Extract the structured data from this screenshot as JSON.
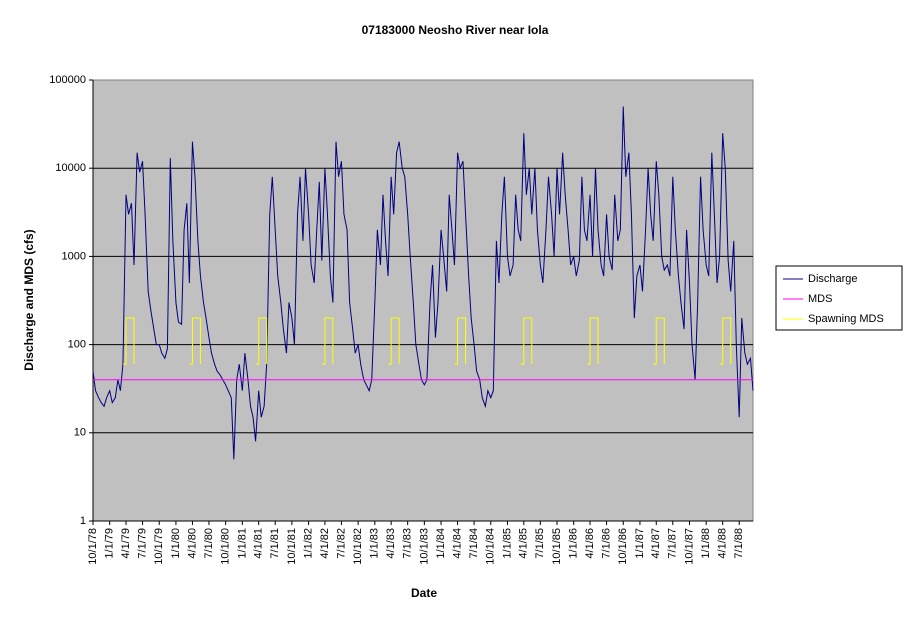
{
  "chart_data": {
    "type": "line",
    "title": "07183000 Neosho River near Iola",
    "x_label": "Date",
    "y_label": "Discharge and MDS (cfs)",
    "log_y": true,
    "grid": true,
    "legend": "right",
    "ylim": [
      1,
      100000
    ],
    "yticks": [
      1,
      10,
      100,
      1000,
      10000,
      100000
    ],
    "xlim": [
      "10/1/78",
      "9/15/88"
    ],
    "xticks": [
      "10/1/78",
      "1/1/79",
      "4/1/79",
      "7/1/79",
      "10/1/79",
      "1/1/80",
      "4/1/80",
      "7/1/80",
      "10/1/80",
      "1/1/81",
      "4/1/81",
      "7/1/81",
      "10/1/81",
      "1/1/82",
      "4/1/82",
      "7/1/82",
      "10/1/82",
      "1/1/83",
      "4/1/83",
      "7/1/83",
      "10/1/83",
      "1/1/84",
      "4/1/84",
      "7/1/84",
      "10/1/84",
      "1/1/85",
      "4/1/85",
      "7/1/85",
      "10/1/85",
      "1/1/86",
      "4/1/86",
      "7/1/86",
      "10/1/86",
      "1/1/87",
      "4/1/87",
      "7/1/87",
      "10/1/87",
      "1/1/88",
      "4/1/88",
      "7/1/88"
    ],
    "x": [
      "10/1/78",
      "10/15/78",
      "11/1/78",
      "11/15/78",
      "12/1/78",
      "12/15/78",
      "1/1/79",
      "1/15/79",
      "2/1/79",
      "2/15/79",
      "3/1/79",
      "3/15/79",
      "4/1/79",
      "4/15/79",
      "5/1/79",
      "5/15/79",
      "6/1/79",
      "6/15/79",
      "7/1/79",
      "7/15/79",
      "8/1/79",
      "8/15/79",
      "9/1/79",
      "9/15/79",
      "10/1/79",
      "10/15/79",
      "11/1/79",
      "11/15/79",
      "12/1/79",
      "12/15/79",
      "1/1/80",
      "1/15/80",
      "2/1/80",
      "2/15/80",
      "3/1/80",
      "3/15/80",
      "4/1/80",
      "4/15/80",
      "5/1/80",
      "5/15/80",
      "6/1/80",
      "6/15/80",
      "7/1/80",
      "7/15/80",
      "8/1/80",
      "8/15/80",
      "9/1/80",
      "9/15/80",
      "10/1/80",
      "10/15/80",
      "11/1/80",
      "11/15/80",
      "12/1/80",
      "12/15/80",
      "1/1/81",
      "1/15/81",
      "2/1/81",
      "2/15/81",
      "3/1/81",
      "3/15/81",
      "4/1/81",
      "4/15/81",
      "5/1/81",
      "5/15/81",
      "6/1/81",
      "6/15/81",
      "7/1/81",
      "7/15/81",
      "8/1/81",
      "8/15/81",
      "9/1/81",
      "9/15/81",
      "10/1/81",
      "10/15/81",
      "11/1/81",
      "11/15/81",
      "12/1/81",
      "12/15/81",
      "1/1/82",
      "1/15/82",
      "2/1/82",
      "2/15/82",
      "3/1/82",
      "3/15/82",
      "4/1/82",
      "4/15/82",
      "5/1/82",
      "5/15/82",
      "6/1/82",
      "6/15/82",
      "7/1/82",
      "7/15/82",
      "8/1/82",
      "8/15/82",
      "9/1/82",
      "9/15/82",
      "10/1/82",
      "10/15/82",
      "11/1/82",
      "11/15/82",
      "12/1/82",
      "12/15/82",
      "1/1/83",
      "1/15/83",
      "2/1/83",
      "2/15/83",
      "3/1/83",
      "3/15/83",
      "4/1/83",
      "4/15/83",
      "5/1/83",
      "5/15/83",
      "6/1/83",
      "6/15/83",
      "7/1/83",
      "7/15/83",
      "8/1/83",
      "8/15/83",
      "9/1/83",
      "9/15/83",
      "10/1/83",
      "10/15/83",
      "11/1/83",
      "11/15/83",
      "12/1/83",
      "12/15/83",
      "1/1/84",
      "1/15/84",
      "2/1/84",
      "2/15/84",
      "3/1/84",
      "3/15/84",
      "4/1/84",
      "4/15/84",
      "5/1/84",
      "5/15/84",
      "6/1/84",
      "6/15/84",
      "7/1/84",
      "7/15/84",
      "8/1/84",
      "8/15/84",
      "9/1/84",
      "9/15/84",
      "10/1/84",
      "10/15/84",
      "11/1/84",
      "11/15/84",
      "12/1/84",
      "12/15/84",
      "1/1/85",
      "1/15/85",
      "2/1/85",
      "2/15/85",
      "3/1/85",
      "3/15/85",
      "4/1/85",
      "4/15/85",
      "5/1/85",
      "5/15/85",
      "6/1/85",
      "6/15/85",
      "7/1/85",
      "7/15/85",
      "8/1/85",
      "8/15/85",
      "9/1/85",
      "9/15/85",
      "10/1/85",
      "10/15/85",
      "11/1/85",
      "11/15/85",
      "12/1/85",
      "12/15/85",
      "1/1/86",
      "1/15/86",
      "2/1/86",
      "2/15/86",
      "3/1/86",
      "3/15/86",
      "4/1/86",
      "4/15/86",
      "5/1/86",
      "5/15/86",
      "6/1/86",
      "6/15/86",
      "7/1/86",
      "7/15/86",
      "8/1/86",
      "8/15/86",
      "9/1/86",
      "9/15/86",
      "10/1/86",
      "10/15/86",
      "11/1/86",
      "11/15/86",
      "12/1/86",
      "12/15/86",
      "1/1/87",
      "1/15/87",
      "2/1/87",
      "2/15/87",
      "3/1/87",
      "3/15/87",
      "4/1/87",
      "4/15/87",
      "5/1/87",
      "5/15/87",
      "6/1/87",
      "6/15/87",
      "7/1/87",
      "7/15/87",
      "8/1/87",
      "8/15/87",
      "9/1/87",
      "9/15/87",
      "10/1/87",
      "10/15/87",
      "11/1/87",
      "11/15/87",
      "12/1/87",
      "12/15/87",
      "1/1/88",
      "1/15/88",
      "2/1/88",
      "2/15/88",
      "3/1/88",
      "3/15/88",
      "4/1/88",
      "4/15/88",
      "5/1/88",
      "5/15/88",
      "6/1/88",
      "6/15/88",
      "7/1/88",
      "7/15/88",
      "8/1/88",
      "8/15/88",
      "9/1/88",
      "9/15/88"
    ],
    "series": [
      {
        "name": "Discharge",
        "color": "#000080",
        "values": [
          50,
          30,
          25,
          22,
          20,
          25,
          30,
          22,
          25,
          40,
          30,
          60,
          5000,
          3000,
          4000,
          800,
          15000,
          9000,
          12000,
          3000,
          400,
          250,
          150,
          100,
          100,
          80,
          70,
          90,
          13000,
          1500,
          300,
          180,
          170,
          2000,
          4000,
          500,
          20000,
          8000,
          1500,
          600,
          300,
          200,
          120,
          80,
          60,
          50,
          45,
          40,
          35,
          30,
          25,
          5,
          40,
          60,
          30,
          80,
          40,
          20,
          15,
          8,
          30,
          15,
          20,
          60,
          3000,
          8000,
          2000,
          600,
          300,
          150,
          80,
          300,
          200,
          100,
          3000,
          8000,
          1500,
          10000,
          3000,
          800,
          500,
          2000,
          7000,
          900,
          10000,
          3000,
          600,
          300,
          20000,
          8000,
          12000,
          3000,
          2000,
          300,
          150,
          80,
          100,
          60,
          40,
          35,
          30,
          40,
          300,
          2000,
          800,
          5000,
          1500,
          600,
          8000,
          3000,
          15000,
          20000,
          10000,
          8000,
          3000,
          1000,
          300,
          100,
          60,
          40,
          35,
          40,
          300,
          800,
          120,
          300,
          2000,
          1000,
          400,
          5000,
          2000,
          800,
          15000,
          10000,
          12000,
          3000,
          600,
          200,
          100,
          50,
          40,
          25,
          20,
          30,
          25,
          30,
          1500,
          500,
          3000,
          8000,
          1000,
          600,
          800,
          5000,
          2000,
          1500,
          25000,
          5000,
          10000,
          3000,
          10000,
          2000,
          800,
          500,
          2000,
          8000,
          3000,
          1000,
          10000,
          3000,
          15000,
          5000,
          2000,
          800,
          1000,
          600,
          900,
          8000,
          2000,
          1500,
          5000,
          1000,
          10000,
          2000,
          800,
          600,
          3000,
          1000,
          700,
          5000,
          1500,
          2000,
          50000,
          8000,
          15000,
          3000,
          200,
          600,
          800,
          400,
          2000,
          10000,
          3000,
          1500,
          12000,
          5000,
          1000,
          700,
          800,
          600,
          8000,
          2000,
          600,
          300,
          150,
          2000,
          500,
          100,
          40,
          300,
          8000,
          2000,
          800,
          600,
          15000,
          3000,
          500,
          1000,
          25000,
          10000,
          900,
          400,
          1500,
          100,
          15,
          200,
          80,
          60,
          70,
          30
        ]
      },
      {
        "name": "MDS",
        "color": "#ff00ff",
        "x": [
          "10/1/78",
          "9/15/88"
        ],
        "values": [
          40,
          40
        ]
      },
      {
        "name": "Spawning MDS",
        "color": "#ffff00",
        "x": [
          "3/15/79",
          "4/1/79",
          "4/1/79",
          "5/15/79",
          "5/15/79",
          null,
          "3/15/80",
          "4/1/80",
          "4/1/80",
          "5/15/80",
          "5/15/80",
          null,
          "3/15/81",
          "4/1/81",
          "4/1/81",
          "5/15/81",
          "5/15/81",
          null,
          "3/15/82",
          "4/1/82",
          "4/1/82",
          "5/15/82",
          "5/15/82",
          null,
          "3/15/83",
          "4/1/83",
          "4/1/83",
          "5/15/83",
          "5/15/83",
          null,
          "3/15/84",
          "4/1/84",
          "4/1/84",
          "5/15/84",
          "5/15/84",
          null,
          "3/15/85",
          "4/1/85",
          "4/1/85",
          "5/15/85",
          "5/15/85",
          null,
          "3/15/86",
          "4/1/86",
          "4/1/86",
          "5/15/86",
          "5/15/86",
          null,
          "3/15/87",
          "4/1/87",
          "4/1/87",
          "5/15/87",
          "5/15/87",
          null,
          "3/15/88",
          "4/1/88",
          "4/1/88",
          "5/15/88",
          "5/15/88"
        ],
        "values": [
          60,
          60,
          200,
          200,
          60,
          null,
          60,
          60,
          200,
          200,
          60,
          null,
          60,
          60,
          200,
          200,
          60,
          null,
          60,
          60,
          200,
          200,
          60,
          null,
          60,
          60,
          200,
          200,
          60,
          null,
          60,
          60,
          200,
          200,
          60,
          null,
          60,
          60,
          200,
          200,
          60,
          null,
          60,
          60,
          200,
          200,
          60,
          null,
          60,
          60,
          200,
          200,
          60,
          null,
          60,
          60,
          200,
          200,
          60
        ]
      }
    ]
  }
}
